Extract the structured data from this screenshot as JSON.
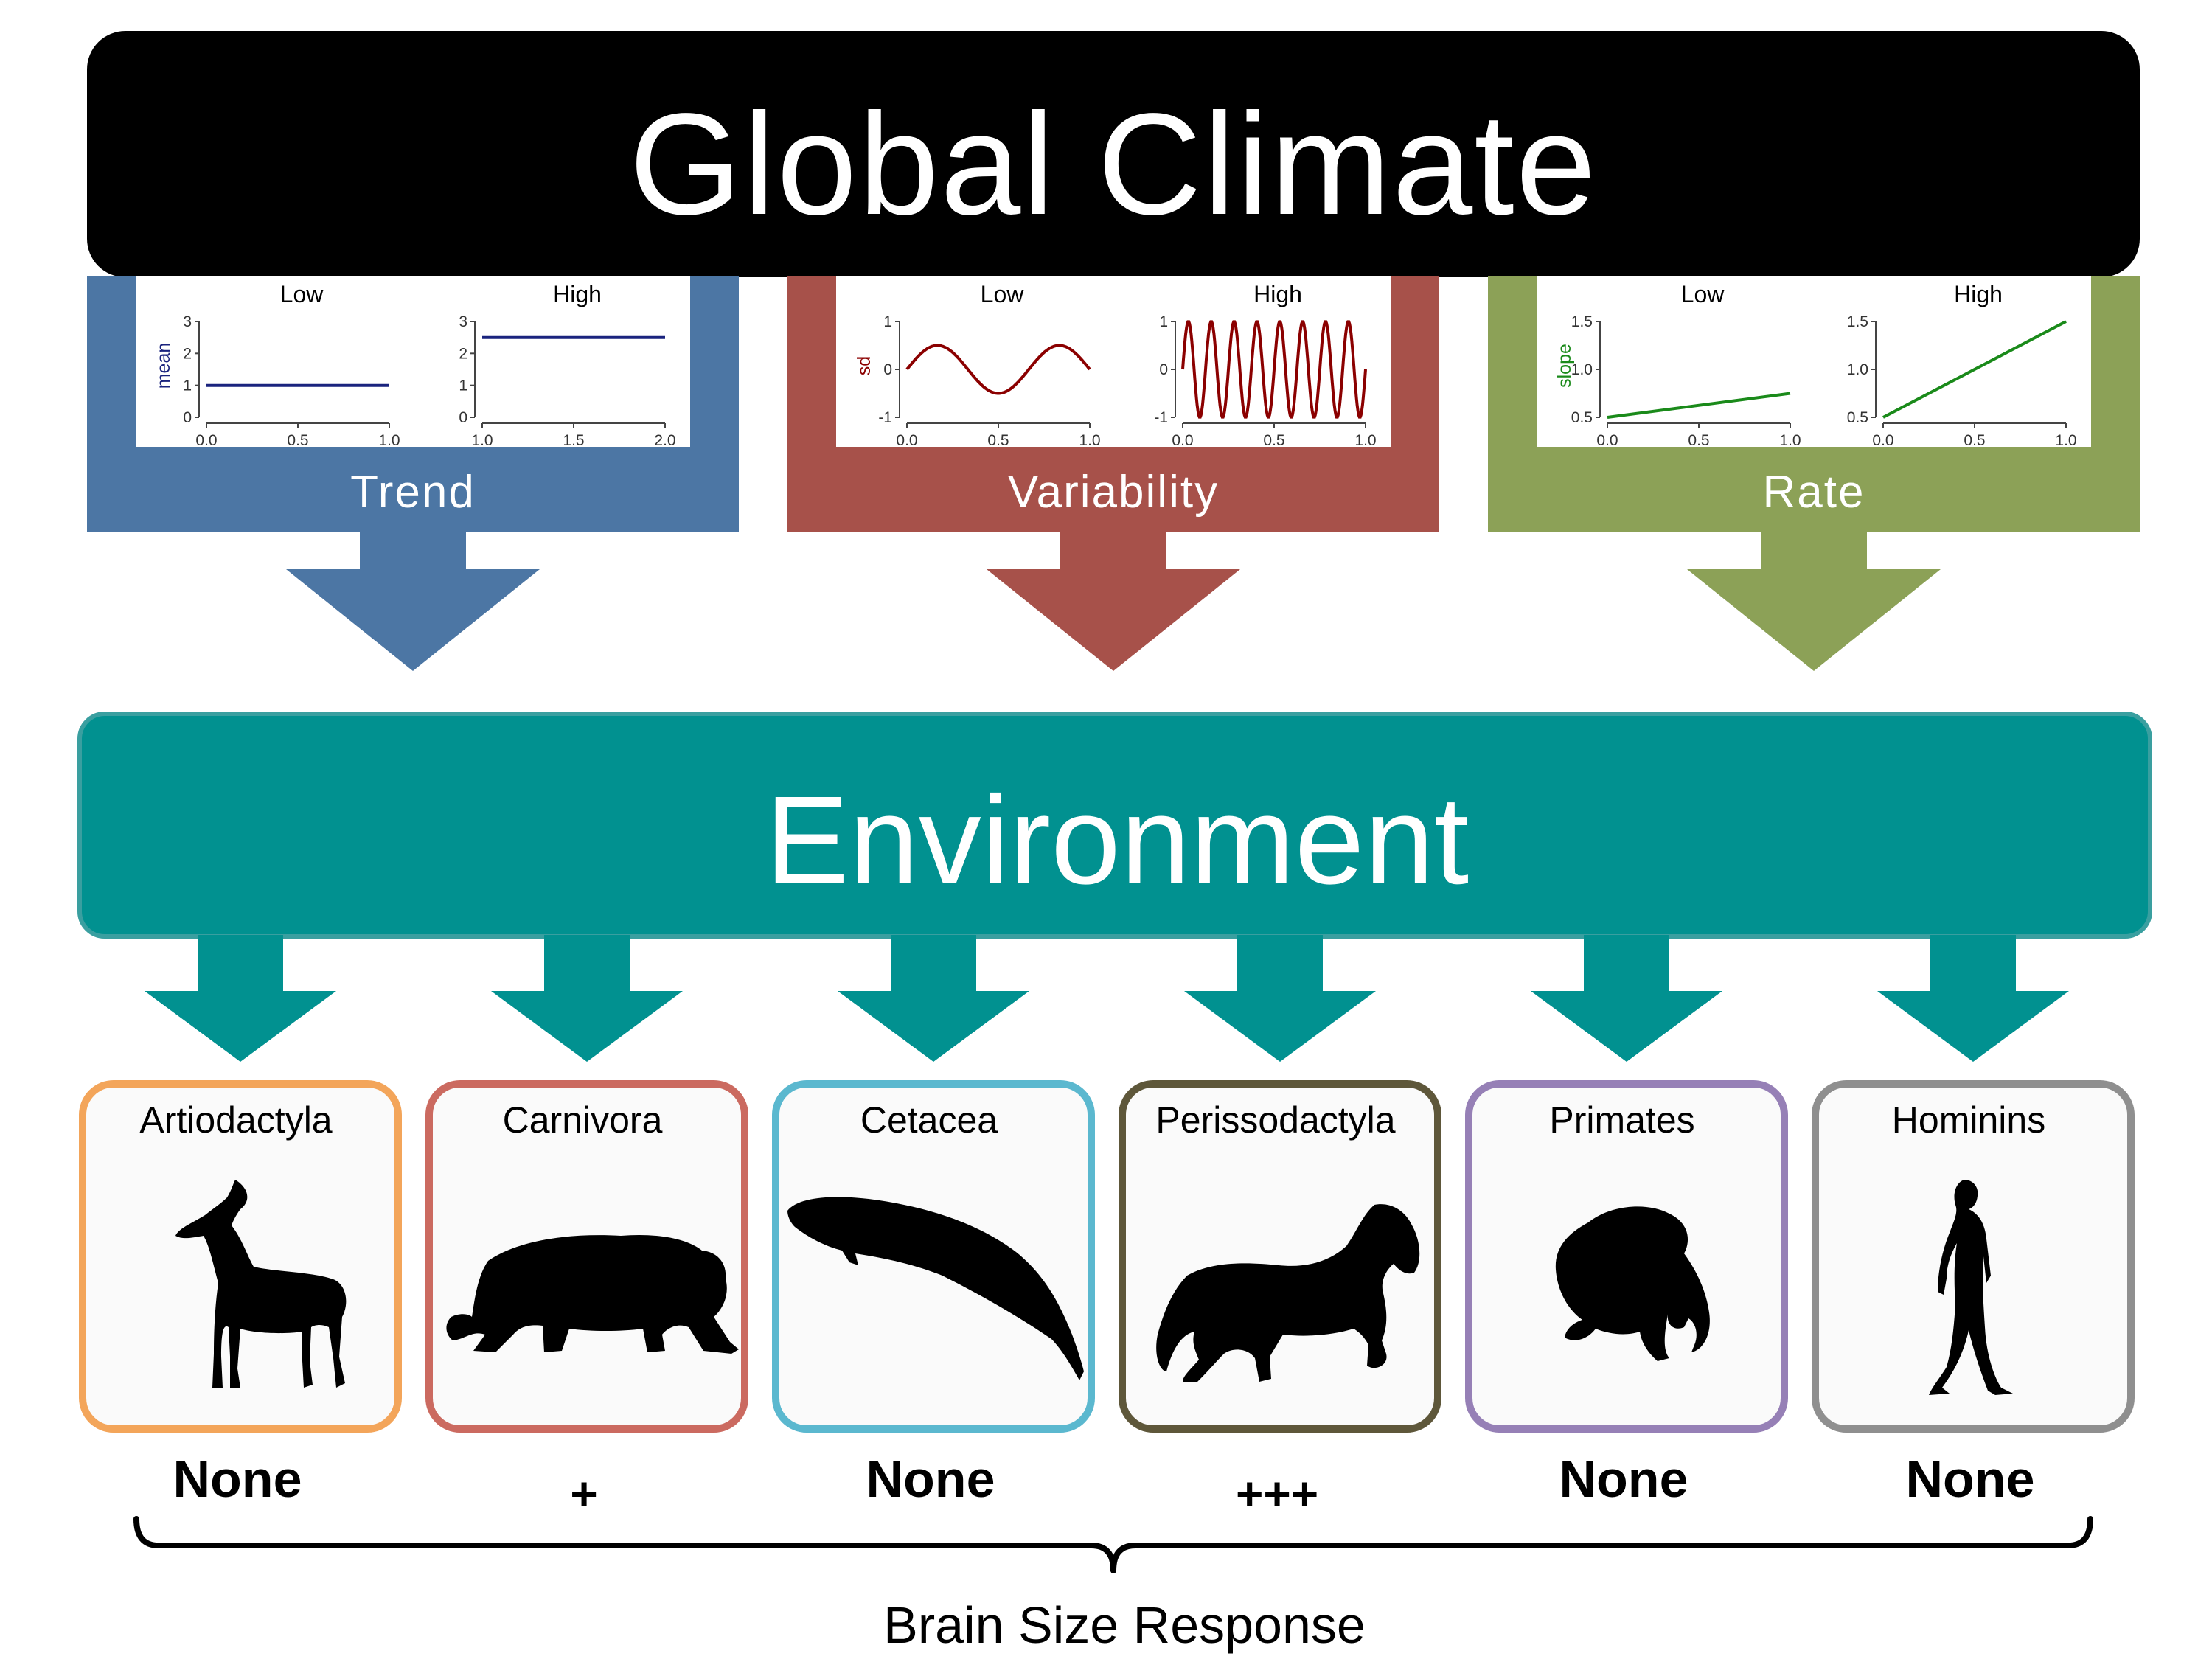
{
  "title": "Global Climate",
  "colors": {
    "trend": "#4c76a4",
    "variability": "#a7514a",
    "rate": "#8ca157",
    "environment": "#019190",
    "title_bar": "#000000",
    "trend_line": "#1a237e",
    "variability_line": "#8b0000",
    "rate_line": "#1a8a1a"
  },
  "factors": [
    {
      "id": "trend",
      "label": "Trend",
      "ylabel": "mean",
      "panels": [
        {
          "title": "Low",
          "y_ticks": [
            "3",
            "2",
            "1",
            "0"
          ],
          "x_ticks": [
            "0.0",
            "0.5",
            "1.0"
          ],
          "x_range": [
            0,
            1
          ],
          "y_range": [
            0,
            3
          ]
        },
        {
          "title": "High",
          "y_ticks": [
            "3",
            "2",
            "1",
            "0"
          ],
          "x_ticks": [
            "1.0",
            "1.5",
            "2.0"
          ],
          "x_range": [
            1,
            2
          ],
          "y_range": [
            0,
            3
          ]
        }
      ]
    },
    {
      "id": "variability",
      "label": "Variability",
      "ylabel": "sd",
      "panels": [
        {
          "title": "Low",
          "y_ticks": [
            "1",
            "0",
            "-1"
          ],
          "x_ticks": [
            "0.0",
            "0.5",
            "1.0"
          ],
          "x_range": [
            0,
            1
          ],
          "y_range": [
            -1,
            1
          ]
        },
        {
          "title": "High",
          "y_ticks": [
            "1",
            "0",
            "-1"
          ],
          "x_ticks": [
            "0.0",
            "0.5",
            "1.0"
          ],
          "x_range": [
            0,
            1
          ],
          "y_range": [
            -1,
            1
          ]
        }
      ]
    },
    {
      "id": "rate",
      "label": "Rate",
      "ylabel": "slope",
      "panels": [
        {
          "title": "Low",
          "y_ticks": [
            "1.5",
            "1.0",
            "0.5"
          ],
          "x_ticks": [
            "0.0",
            "0.5",
            "1.0"
          ],
          "x_range": [
            0,
            1
          ],
          "y_range": [
            0.5,
            1.5
          ]
        },
        {
          "title": "High",
          "y_ticks": [
            "1.5",
            "1.0",
            "0.5"
          ],
          "x_ticks": [
            "0.0",
            "0.5",
            "1.0"
          ],
          "x_range": [
            0,
            1
          ],
          "y_range": [
            0.5,
            1.5
          ]
        }
      ]
    }
  ],
  "chart_data": [
    {
      "type": "line",
      "title": "Low",
      "ylabel": "mean",
      "x": [
        0.0,
        1.0
      ],
      "y": [
        1.0,
        1.0
      ],
      "xlim": [
        0,
        1
      ],
      "ylim": [
        0,
        3
      ]
    },
    {
      "type": "line",
      "title": "High",
      "ylabel": "mean",
      "x": [
        1.0,
        2.0
      ],
      "y": [
        2.5,
        2.5
      ],
      "xlim": [
        1,
        2
      ],
      "ylim": [
        0,
        3
      ]
    },
    {
      "type": "line",
      "title": "Low",
      "ylabel": "sd",
      "function": "sin",
      "cycles": 1.5,
      "amplitude": 0.5,
      "xlim": [
        0,
        1
      ],
      "ylim": [
        -1,
        1
      ]
    },
    {
      "type": "line",
      "title": "High",
      "ylabel": "sd",
      "function": "sin",
      "cycles": 8,
      "amplitude": 1.0,
      "xlim": [
        0,
        1
      ],
      "ylim": [
        -1,
        1
      ]
    },
    {
      "type": "line",
      "title": "Low",
      "ylabel": "slope",
      "x": [
        0.0,
        1.0
      ],
      "y": [
        0.5,
        0.75
      ],
      "xlim": [
        0,
        1
      ],
      "ylim": [
        0.5,
        1.5
      ]
    },
    {
      "type": "line",
      "title": "High",
      "ylabel": "slope",
      "x": [
        0.0,
        1.0
      ],
      "y": [
        0.5,
        1.5
      ],
      "xlim": [
        0,
        1
      ],
      "ylim": [
        0.5,
        1.5
      ]
    }
  ],
  "environment": {
    "label": "Environment"
  },
  "groups": [
    {
      "name": "Artiodactyla",
      "border": "#f3a55a",
      "icon": "antelope-silhouette-icon",
      "response": "None"
    },
    {
      "name": "Carnivora",
      "border": "#cb6a60",
      "icon": "bear-silhouette-icon",
      "response": "+"
    },
    {
      "name": "Cetacea",
      "border": "#5bb8cf",
      "icon": "whale-silhouette-icon",
      "response": "None"
    },
    {
      "name": "Perissodactyla",
      "border": "#5e573a",
      "icon": "horse-silhouette-icon",
      "response": "+++"
    },
    {
      "name": "Primates",
      "border": "#9680b6",
      "icon": "chimpanzee-silhouette-icon",
      "response": "None"
    },
    {
      "name": "Hominins",
      "border": "#8f8f8f",
      "icon": "human-silhouette-icon",
      "response": "None"
    }
  ],
  "brain_size_label": "Brain Size Response"
}
